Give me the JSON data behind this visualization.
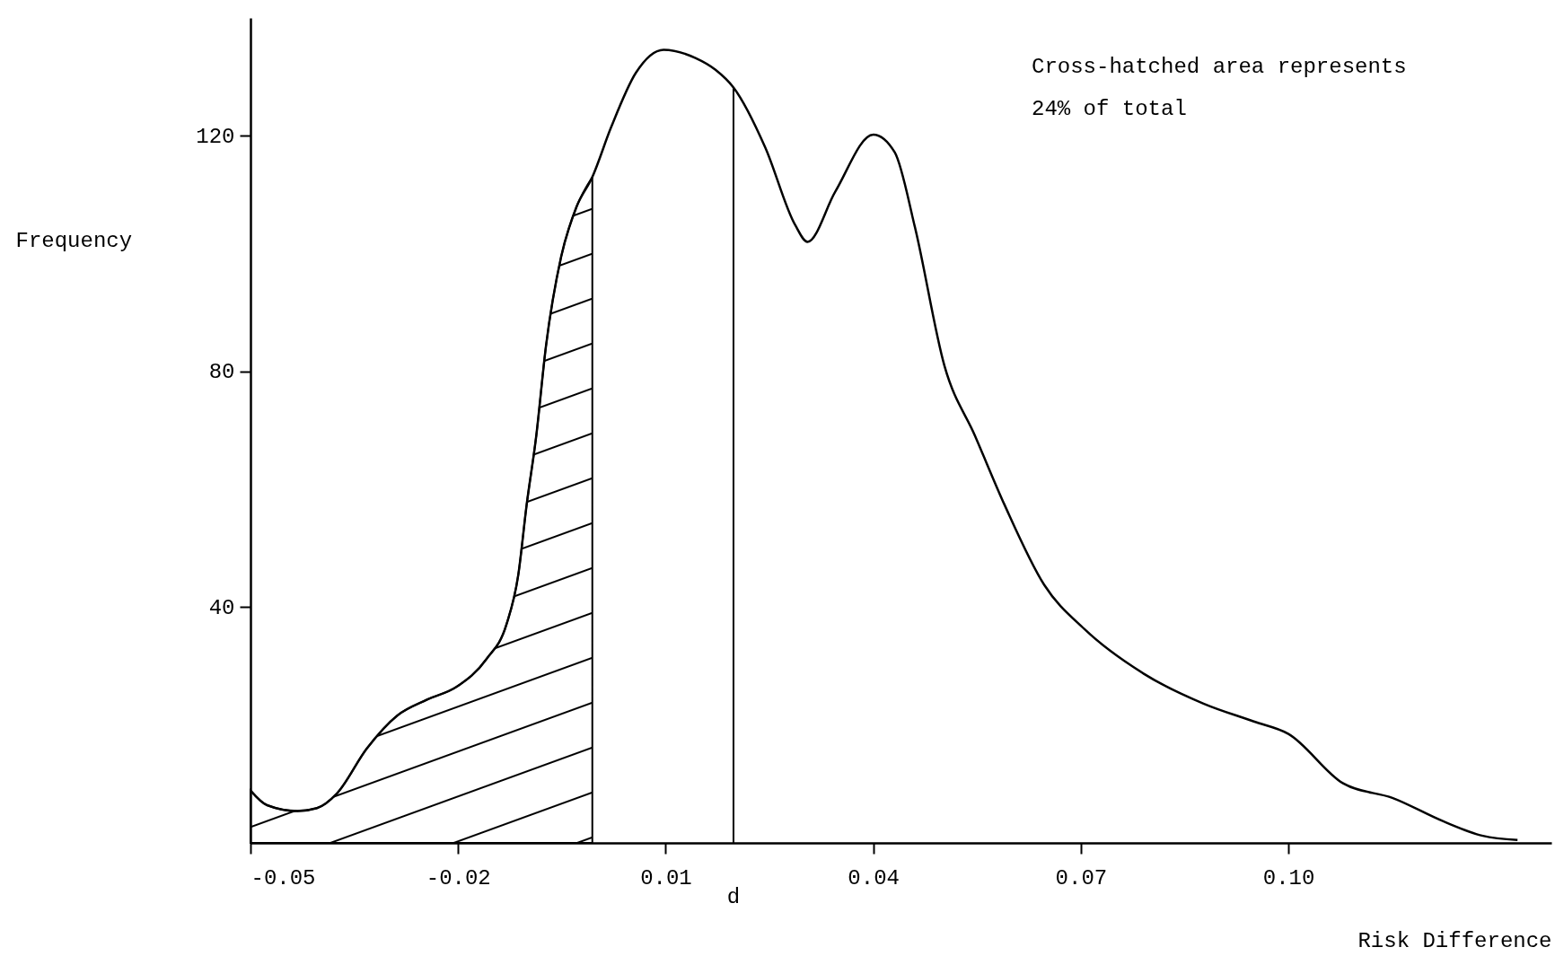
{
  "chart_data": {
    "type": "line",
    "xlabel": "Risk Difference",
    "ylabel": "Frequency",
    "annotations": [
      "Cross-hatched area represents\n24% of total"
    ],
    "x": [
      -0.05,
      -0.0476,
      -0.0432,
      -0.0404,
      -0.0375,
      -0.0332,
      -0.0288,
      -0.0245,
      -0.0202,
      -0.0159,
      -0.013,
      -0.0113,
      -0.0101,
      -0.0087,
      -0.0073,
      -0.0051,
      -0.0029,
      -0.0006,
      0.0021,
      0.0057,
      0.0097,
      0.0143,
      0.0172,
      0.0198,
      0.0244,
      0.0287,
      0.0305,
      0.0345,
      0.04,
      0.0431,
      0.046,
      0.0503,
      0.0547,
      0.059,
      0.0647,
      0.0705,
      0.0791,
      0.0878,
      0.095,
      0.1,
      0.1079,
      0.1151,
      0.1223,
      0.1281,
      0.1331
    ],
    "series": [
      {
        "type": "area",
        "color": "#000000",
        "x": [
          -0.05,
          -0.0476,
          -0.0432,
          -0.0404,
          -0.0375,
          -0.0332,
          -0.0288,
          -0.0245,
          -0.0202,
          -0.0159,
          -0.013,
          -0.0113,
          -0.0101,
          -0.0087,
          -0.0073,
          -0.0051,
          -0.0029,
          -0.0006
        ],
        "values": [
          8.9,
          6.4,
          5.4,
          5.9,
          8.4,
          16,
          21.6,
          24.3,
          26.5,
          31.2,
          37.1,
          45.5,
          57.3,
          69.1,
          84.3,
          99.5,
          107.9,
          113
        ]
      },
      {
        "color": "#000000",
        "values": [
          8.9,
          6.4,
          5.4,
          5.9,
          8.4,
          16,
          21.6,
          24.3,
          26.5,
          31.2,
          37.1,
          45.5,
          57.3,
          69.1,
          84.3,
          99.5,
          107.9,
          113,
          121.4,
          130.7,
          134.6,
          133.2,
          131.2,
          128.2,
          118,
          104.9,
          102,
          110.5,
          120.2,
          117.2,
          104.6,
          80.9,
          69.1,
          57.3,
          43.8,
          36.3,
          28.7,
          23.6,
          20.6,
          18.5,
          10.1,
          7.6,
          3.7,
          1.2,
          0.5
        ]
      }
    ],
    "xlim": [
      -0.05,
      0.138
    ],
    "ylim": [
      0,
      140
    ],
    "xticks": [
      -0.05,
      -0.02,
      0.01,
      0.04,
      0.07,
      {
        "value": 0.1,
        "label": "0.10"
      }
    ],
    "yticks": [
      40,
      80,
      120
    ],
    "ref_lines": [
      {
        "axis": "x",
        "value": 0.0198,
        "label": "d"
      }
    ],
    "grid": false,
    "marker": "none",
    "line_style": "solid"
  }
}
